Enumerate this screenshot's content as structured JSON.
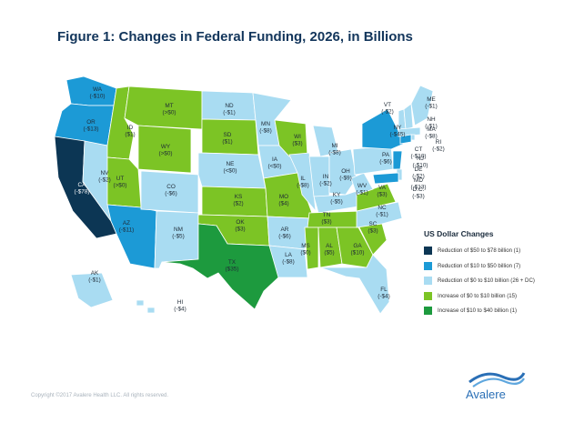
{
  "title": "Figure 1: Changes in Federal Funding, 2026, in Billions",
  "legend": {
    "title": "US Dollar Changes",
    "items": [
      {
        "label": "Reduction of $50 to $78 billion (1)",
        "color": "#0c3654"
      },
      {
        "label": "Reduction of $10 to $50 billion (7)",
        "color": "#1c9ad6"
      },
      {
        "label": "Reduction of $0 to $10 billion (26 + DC)",
        "color": "#a9dcf2"
      },
      {
        "label": "Increase of $0 to $10 billion (15)",
        "color": "#7cc425"
      },
      {
        "label": "Increase of $10 to $40 billion (1)",
        "color": "#1d9a3e"
      }
    ]
  },
  "states": [
    {
      "abbr": "WA",
      "value": "(-$10)",
      "color": "#1c9ad6"
    },
    {
      "abbr": "OR",
      "value": "(-$13)",
      "color": "#1c9ad6"
    },
    {
      "abbr": "CA",
      "value": "(-$78)",
      "color": "#0c3654"
    },
    {
      "abbr": "NV",
      "value": "(-$2)",
      "color": "#a9dcf2"
    },
    {
      "abbr": "ID",
      "value": "($1)",
      "color": "#7cc425"
    },
    {
      "abbr": "MT",
      "value": "(>$0)",
      "color": "#7cc425"
    },
    {
      "abbr": "WY",
      "value": "(>$0)",
      "color": "#7cc425"
    },
    {
      "abbr": "UT",
      "value": "(>$0)",
      "color": "#7cc425"
    },
    {
      "abbr": "AZ",
      "value": "(-$11)",
      "color": "#1c9ad6"
    },
    {
      "abbr": "CO",
      "value": "(-$6)",
      "color": "#a9dcf2"
    },
    {
      "abbr": "NM",
      "value": "(-$5)",
      "color": "#a9dcf2"
    },
    {
      "abbr": "ND",
      "value": "(-$1)",
      "color": "#a9dcf2"
    },
    {
      "abbr": "SD",
      "value": "($1)",
      "color": "#7cc425"
    },
    {
      "abbr": "NE",
      "value": "(<$0)",
      "color": "#a9dcf2"
    },
    {
      "abbr": "KS",
      "value": "($2)",
      "color": "#7cc425"
    },
    {
      "abbr": "OK",
      "value": "($3)",
      "color": "#7cc425"
    },
    {
      "abbr": "TX",
      "value": "($35)",
      "color": "#1d9a3e"
    },
    {
      "abbr": "MN",
      "value": "(-$8)",
      "color": "#a9dcf2"
    },
    {
      "abbr": "IA",
      "value": "(<$0)",
      "color": "#a9dcf2"
    },
    {
      "abbr": "MO",
      "value": "($4)",
      "color": "#7cc425"
    },
    {
      "abbr": "AR",
      "value": "(-$6)",
      "color": "#a9dcf2"
    },
    {
      "abbr": "LA",
      "value": "(-$8)",
      "color": "#a9dcf2"
    },
    {
      "abbr": "WI",
      "value": "($3)",
      "color": "#7cc425"
    },
    {
      "abbr": "IL",
      "value": "(-$8)",
      "color": "#a9dcf2"
    },
    {
      "abbr": "MI",
      "value": "(-$8)",
      "color": "#a9dcf2"
    },
    {
      "abbr": "IN",
      "value": "(-$2)",
      "color": "#a9dcf2"
    },
    {
      "abbr": "OH",
      "value": "(-$9)",
      "color": "#a9dcf2"
    },
    {
      "abbr": "KY",
      "value": "(-$5)",
      "color": "#a9dcf2"
    },
    {
      "abbr": "TN",
      "value": "($3)",
      "color": "#7cc425"
    },
    {
      "abbr": "MS",
      "value": "($0)",
      "color": "#7cc425"
    },
    {
      "abbr": "AL",
      "value": "($5)",
      "color": "#7cc425"
    },
    {
      "abbr": "GA",
      "value": "($10)",
      "color": "#7cc425"
    },
    {
      "abbr": "FL",
      "value": "(-$4)",
      "color": "#a9dcf2"
    },
    {
      "abbr": "SC",
      "value": "($3)",
      "color": "#7cc425"
    },
    {
      "abbr": "NC",
      "value": "(-$1)",
      "color": "#a9dcf2"
    },
    {
      "abbr": "VA",
      "value": "($3)",
      "color": "#7cc425"
    },
    {
      "abbr": "WV",
      "value": "(-$1)",
      "color": "#a9dcf2"
    },
    {
      "abbr": "PA",
      "value": "(-$6)",
      "color": "#a9dcf2"
    },
    {
      "abbr": "NY",
      "value": "(-$45)",
      "color": "#1c9ad6"
    },
    {
      "abbr": "VT",
      "value": "(-$2)",
      "color": "#a9dcf2"
    },
    {
      "abbr": "NH",
      "value": "(-$1)",
      "color": "#a9dcf2"
    },
    {
      "abbr": "ME",
      "value": "(-$1)",
      "color": "#a9dcf2"
    },
    {
      "abbr": "MA",
      "value": "(-$8)",
      "color": "#a9dcf2"
    },
    {
      "abbr": "RI",
      "value": "(-$2)",
      "color": "#a9dcf2"
    },
    {
      "abbr": "CT",
      "value": "(-$10)",
      "color": "#1c9ad6"
    },
    {
      "abbr": "NJ",
      "value": "(-$10)",
      "color": "#1c9ad6"
    },
    {
      "abbr": "DE",
      "value": "(-$2)",
      "color": "#a9dcf2"
    },
    {
      "abbr": "MD",
      "value": "(-$13)",
      "color": "#1c9ad6"
    },
    {
      "abbr": "D.C.",
      "value": "(-$3)",
      "color": "#a9dcf2"
    },
    {
      "abbr": "AK",
      "value": "(-$1)",
      "color": "#a9dcf2"
    },
    {
      "abbr": "HI",
      "value": "(-$4)",
      "color": "#a9dcf2"
    }
  ],
  "copyright": "Copyright ©2017 Avalere Health LLC. All rights reserved.",
  "logo": {
    "text": "Avalere"
  }
}
